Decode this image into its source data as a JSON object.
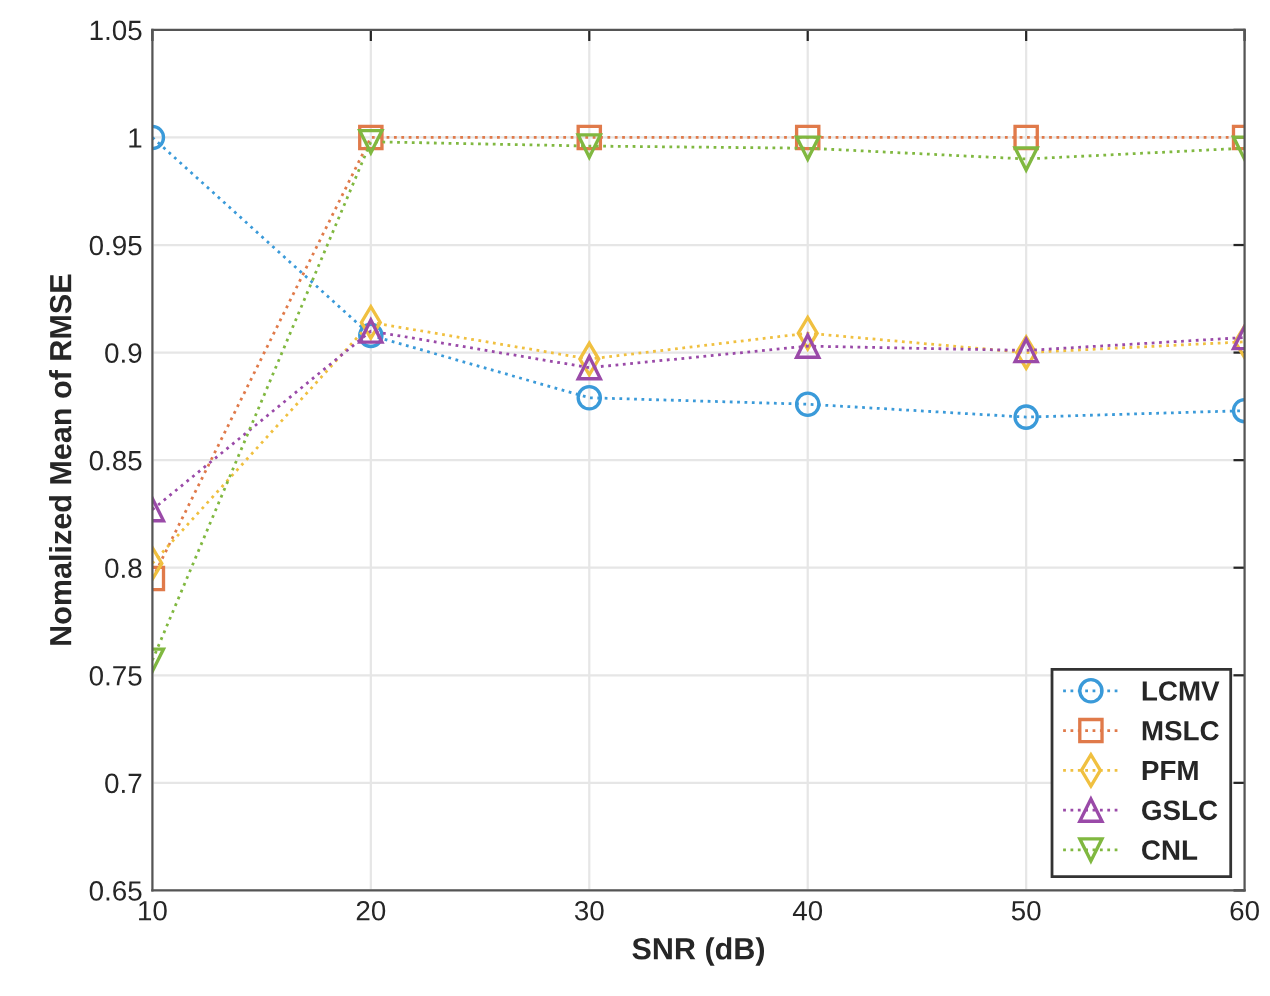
{
  "chart_data": {
    "type": "line",
    "xlabel": "SNR (dB)",
    "ylabel": "Nomalized Mean of RMSE",
    "x": [
      10,
      20,
      30,
      40,
      50,
      60
    ],
    "series": [
      {
        "name": "LCMV",
        "color": "#3a9ad9",
        "marker": "circle",
        "values": [
          1,
          0.908,
          0.879,
          0.876,
          0.87,
          0.873
        ]
      },
      {
        "name": "MSLC",
        "color": "#e07a4a",
        "marker": "square",
        "values": [
          0.795,
          1,
          1,
          1,
          1,
          1
        ]
      },
      {
        "name": "PFM",
        "color": "#f0c040",
        "marker": "diamond",
        "values": [
          0.802,
          0.914,
          0.897,
          0.909,
          0.9,
          0.905
        ]
      },
      {
        "name": "GSLC",
        "color": "#9a4aa8",
        "marker": "triangle",
        "values": [
          0.827,
          0.91,
          0.893,
          0.903,
          0.901,
          0.907
        ]
      },
      {
        "name": "CNL",
        "color": "#80b840",
        "marker": "triangle_down",
        "values": [
          0.757,
          0.998,
          0.996,
          0.995,
          0.99,
          0.995
        ]
      }
    ],
    "xlim": [
      10,
      60
    ],
    "xticks": [
      10,
      20,
      30,
      40,
      50,
      60
    ],
    "ylim": [
      0.65,
      1.05
    ],
    "yticks": [
      0.65,
      0.7,
      0.75,
      0.8,
      0.85,
      0.9,
      0.95,
      1,
      1.05
    ],
    "grid": true,
    "legend": "bottom right",
    "line_style": "dotted"
  }
}
